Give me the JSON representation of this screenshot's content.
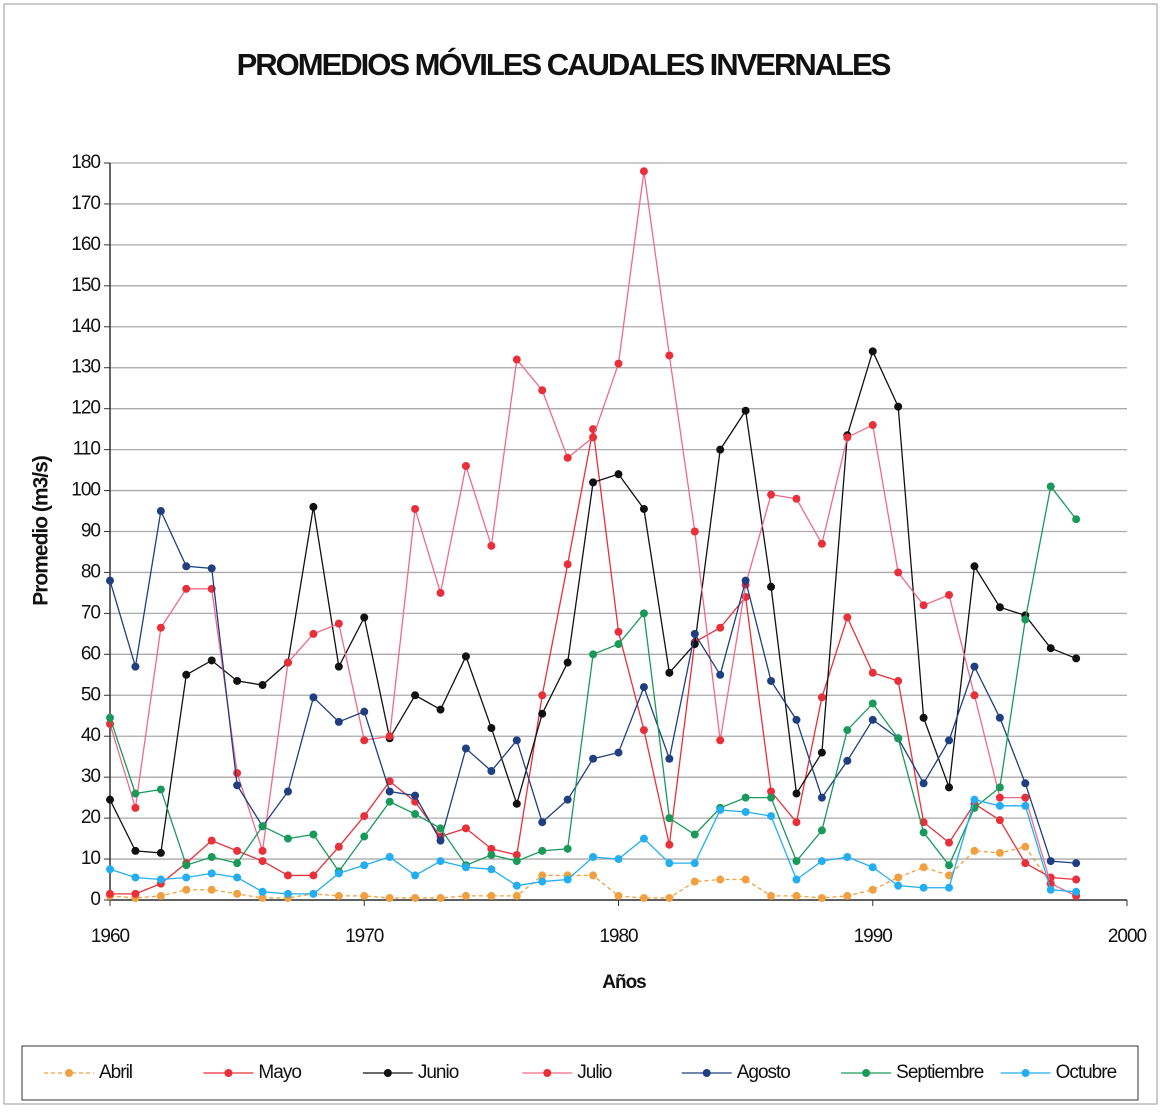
{
  "chart_data": {
    "type": "line",
    "title": "PROMEDIOS MÓVILES CAUDALES INVERNALES",
    "x_label": "Años",
    "y_label": "Promedio (m3/s)",
    "x": [
      1960,
      1961,
      1962,
      1963,
      1964,
      1965,
      1966,
      1967,
      1968,
      1969,
      1970,
      1971,
      1972,
      1973,
      1974,
      1975,
      1976,
      1977,
      1978,
      1979,
      1980,
      1981,
      1982,
      1983,
      1984,
      1985,
      1986,
      1987,
      1988,
      1989,
      1990,
      1991,
      1992,
      1993,
      1994,
      1995,
      1996,
      1997,
      1998
    ],
    "xlim": [
      1960,
      2000
    ],
    "xticks": [
      1960,
      1970,
      1980,
      1990,
      2000
    ],
    "ylim": [
      0,
      180
    ],
    "yticks": [
      0,
      10,
      20,
      30,
      40,
      50,
      60,
      70,
      80,
      90,
      100,
      110,
      120,
      130,
      140,
      150,
      160,
      170,
      180
    ],
    "grid": true,
    "legend": "bottom",
    "series": [
      {
        "name": "Abril",
        "color": "#f0a040",
        "dashed": true,
        "values": [
          1,
          0.5,
          1,
          2.5,
          2.5,
          1.5,
          0.5,
          0.5,
          1.5,
          1,
          1,
          0.5,
          0.5,
          0.5,
          1,
          1,
          1,
          6,
          6,
          6,
          1,
          0.5,
          0.5,
          4.5,
          5,
          5,
          1,
          1,
          0.5,
          1,
          2.5,
          5.5,
          8,
          6,
          12,
          11.5,
          13,
          4,
          1
        ]
      },
      {
        "name": "Mayo",
        "color": "#e8303a",
        "values": [
          1.5,
          1.5,
          4,
          9,
          14.5,
          12,
          9.5,
          6,
          6,
          13,
          20.5,
          29,
          24,
          15.5,
          17.5,
          12.5,
          11,
          50,
          82,
          115,
          65.5,
          41.5,
          13.5,
          63,
          66.5,
          74,
          26.5,
          19,
          49.5,
          69,
          55.5,
          53.5,
          19,
          14,
          23.5,
          19.5,
          9,
          5.5,
          5
        ]
      },
      {
        "name": "Junio",
        "color": "#111111",
        "values": [
          24.5,
          12,
          11.5,
          55,
          58.5,
          53.5,
          52.5,
          58,
          96,
          57,
          69,
          39.5,
          50,
          46.5,
          59.5,
          42,
          23.5,
          45.5,
          58,
          102,
          104,
          95.5,
          55.5,
          62.5,
          110,
          119.5,
          76.5,
          26,
          36,
          113.5,
          134,
          120.5,
          44.5,
          27.5,
          81.5,
          71.5,
          69.5,
          61.5,
          59
        ]
      },
      {
        "name": "Julio",
        "color": "#f06a8a",
        "values": [
          43,
          22.5,
          66.5,
          76,
          76,
          31,
          12,
          58,
          65,
          67.5,
          39,
          40,
          95.5,
          75,
          106,
          86.5,
          132,
          124.5,
          108,
          113,
          131,
          178,
          133,
          90,
          39,
          77,
          99,
          98,
          87,
          113,
          116,
          80,
          72,
          74.5,
          50,
          25,
          25,
          4,
          1
        ]
      },
      {
        "name": "Agosto",
        "color": "#1f3f80",
        "values": [
          78,
          57,
          95,
          81.5,
          81,
          28,
          18,
          26.5,
          49.5,
          43.5,
          46,
          26.5,
          25.5,
          14.5,
          37,
          31.5,
          39,
          19,
          24.5,
          34.5,
          36,
          52,
          34.5,
          65,
          55,
          78,
          53.5,
          44,
          25,
          34,
          44,
          39.5,
          28.5,
          39,
          57,
          44.5,
          28.5,
          9.5,
          9
        ]
      },
      {
        "name": "Septiembre",
        "color": "#1a9a5a",
        "values": [
          44.5,
          26,
          27,
          8.5,
          10.5,
          9,
          18,
          15,
          16,
          7,
          15.5,
          24,
          21,
          17.5,
          8.5,
          11,
          9.5,
          12,
          12.5,
          60,
          62.5,
          70,
          20,
          16,
          22.5,
          25,
          25,
          9.5,
          17,
          41.5,
          48,
          39.5,
          16.5,
          8.5,
          22.5,
          27.5,
          68.5,
          101,
          93
        ]
      },
      {
        "name": "Octubre",
        "color": "#22aef0",
        "values": [
          7.5,
          5.5,
          5,
          5.5,
          6.5,
          5.5,
          2,
          1.5,
          1.5,
          6.5,
          8.5,
          10.5,
          6,
          9.5,
          8,
          7.5,
          3.5,
          4.5,
          5,
          10.5,
          10,
          15,
          9,
          9,
          22,
          21.5,
          20.5,
          5,
          9.5,
          10.5,
          8,
          3.5,
          3,
          3,
          24.5,
          23,
          23,
          2.5,
          2
        ]
      }
    ]
  }
}
